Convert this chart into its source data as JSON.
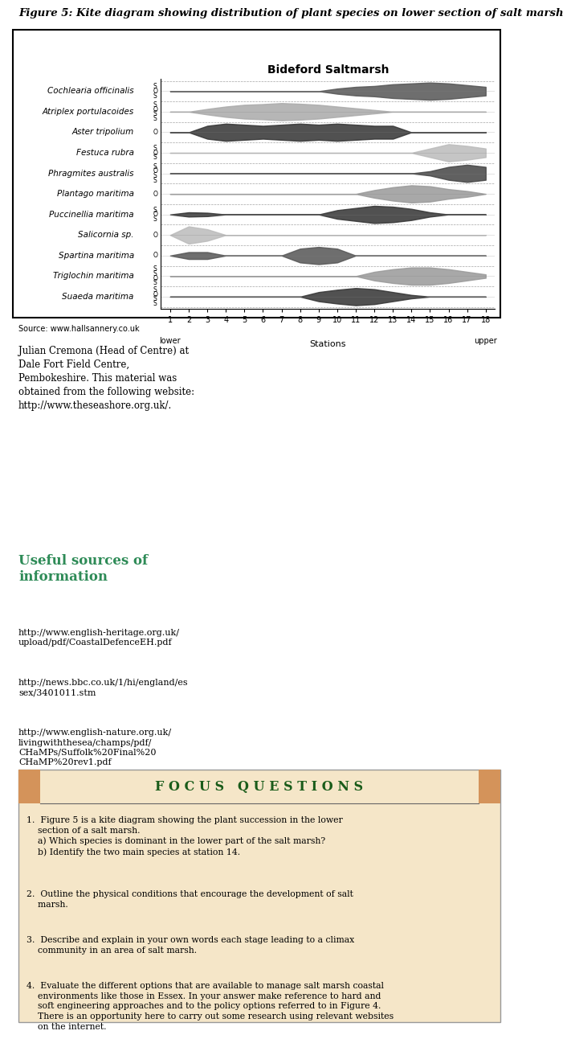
{
  "title": "Figure 5: Kite diagram showing distribution of plant species on lower section of salt marsh",
  "chart_title": "Bideford Saltmarsh",
  "species": [
    "Cochlearia officinalis",
    "Atriplex portulacoides",
    "Aster tripolium",
    "Festuca rubra",
    "Phragmites australis",
    "Plantago maritima",
    "Puccinellia maritima",
    "Salicornia sp.",
    "Spartina maritima",
    "Triglochin maritima",
    "Suaeda maritima"
  ],
  "stations": [
    1,
    2,
    3,
    4,
    5,
    6,
    7,
    8,
    9,
    10,
    11,
    12,
    13,
    14,
    15,
    16,
    17,
    18
  ],
  "kite_data": {
    "Cochlearia officinalis": [
      0,
      0,
      0,
      0,
      0,
      0,
      0,
      0,
      0,
      0.3,
      0.5,
      0.6,
      0.8,
      0.9,
      1.0,
      0.9,
      0.7,
      0.5
    ],
    "Atriplex portulacoides": [
      0,
      0,
      0.8,
      1.5,
      2.0,
      2.2,
      2.5,
      2.3,
      2.0,
      1.5,
      1.0,
      0.5,
      0,
      0,
      0,
      0,
      0,
      0
    ],
    "Aster tripolium": [
      0,
      0,
      0.3,
      0.4,
      0.35,
      0.3,
      0.35,
      0.4,
      0.35,
      0.4,
      0.35,
      0.3,
      0.3,
      0,
      0,
      0,
      0,
      0
    ],
    "Festuca rubra": [
      0,
      0,
      0,
      0,
      0,
      0,
      0,
      0,
      0,
      0,
      0,
      0,
      0,
      0,
      0.5,
      1.0,
      0.8,
      0.5
    ],
    "Phragmites australis": [
      0,
      0,
      0,
      0,
      0,
      0,
      0,
      0,
      0,
      0,
      0,
      0,
      0,
      0,
      0.5,
      1.5,
      2.0,
      1.5
    ],
    "Plantago maritima": [
      0,
      0,
      0,
      0,
      0,
      0,
      0,
      0,
      0,
      0,
      0,
      0.4,
      0.7,
      0.9,
      0.8,
      0.5,
      0.3,
      0
    ],
    "Puccinellia maritima": [
      0,
      0.5,
      0.4,
      0,
      0,
      0,
      0,
      0,
      0,
      1.0,
      1.5,
      2.0,
      1.8,
      1.3,
      0.5,
      0,
      0,
      0
    ],
    "Salicornia sp.": [
      0,
      0.3,
      0.2,
      0,
      0,
      0,
      0,
      0,
      0,
      0,
      0,
      0,
      0,
      0,
      0,
      0,
      0,
      0
    ],
    "Spartina maritima": [
      0,
      0.2,
      0.2,
      0,
      0,
      0,
      0,
      0.4,
      0.5,
      0.4,
      0,
      0,
      0,
      0,
      0,
      0,
      0,
      0
    ],
    "Triglochin maritima": [
      0,
      0,
      0,
      0,
      0,
      0,
      0,
      0,
      0,
      0,
      0,
      0.5,
      0.8,
      1.0,
      1.0,
      0.8,
      0.5,
      0.2
    ],
    "Suaeda maritima": [
      0,
      0,
      0,
      0,
      0,
      0,
      0,
      0,
      0.8,
      1.2,
      1.5,
      1.3,
      0.8,
      0.3,
      0,
      0,
      0,
      0
    ]
  },
  "colors": {
    "Cochlearia officinalis": "#555555",
    "Atriplex portulacoides": "#aaaaaa",
    "Aster tripolium": "#333333",
    "Festuca rubra": "#bbbbbb",
    "Phragmites australis": "#444444",
    "Plantago maritima": "#999999",
    "Puccinellia maritima": "#333333",
    "Salicornia sp.": "#bbbbbb",
    "Spartina maritima": "#555555",
    "Triglochin maritima": "#999999",
    "Suaeda maritima": "#333333"
  },
  "so_patterns": {
    "Cochlearia officinalis": [
      "S",
      "O",
      "S"
    ],
    "Atriplex portulacoides": [
      "S",
      "S",
      "O",
      "S"
    ],
    "Aster tripolium": [
      "O"
    ],
    "Festuca rubra": [
      "S",
      "O",
      "S"
    ],
    "Phragmites australis": [
      "S",
      "S",
      "O",
      "S"
    ],
    "Plantago maritima": [
      "O"
    ],
    "Puccinellia maritima": [
      "S",
      "O",
      "S"
    ],
    "Salicornia sp.": [
      "O"
    ],
    "Spartina maritima": [
      "O"
    ],
    "Triglochin maritima": [
      "S",
      "O",
      "S",
      "S"
    ],
    "Suaeda maritima": [
      "S",
      "S",
      "O",
      "S"
    ]
  },
  "source_text": "Source: www.hallsannery.co.uk",
  "body_text": "Julian Cremona (Head of Centre) at\nDale Fort Field Centre,\nPembokeshire. This material was\nobtained from the following website:\nhttp://www.theseashore.org.uk/.",
  "useful_sources_title": "Useful sources of\ninformation",
  "links": [
    "http://www.english-heritage.org.uk/\nupload/pdf/CoastalDefenceEH.pdf",
    "http://news.bbc.co.uk/1/hi/england/es\nsex/3401011.stm",
    "http://www.english-nature.org.uk/\nlivingwiththesea/champs/pdf/\nCHaMPs/Suffolk%20Final%20\nCHaMP%20rev1.pdf"
  ],
  "focus_header": "F O C U S   Q U E S T I O N S",
  "focus_bg": "#f5e6c8",
  "focus_header_bg": "#d4935a",
  "focus_text_color": "#1a5c1a",
  "questions": [
    "1.  Figure 5 is a kite diagram showing the plant succession in the lower\n    section of a salt marsh.\n    a) Which species is dominant in the lower part of the salt marsh?\n    b) Identify the two main species at station 14.",
    "2.  Outline the physical conditions that encourage the development of salt\n    marsh.",
    "3.  Describe and explain in your own words each stage leading to a climax\n    community in an area of salt marsh.",
    "4.  Evaluate the different options that are available to manage salt marsh coastal\n    environments like those in Essex. In your answer make reference to hard and\n    soft engineering approaches and to the policy options referred to in Figure 4.\n    There is an opportunity here to carry out some research using relevant websites\n    on the internet."
  ]
}
